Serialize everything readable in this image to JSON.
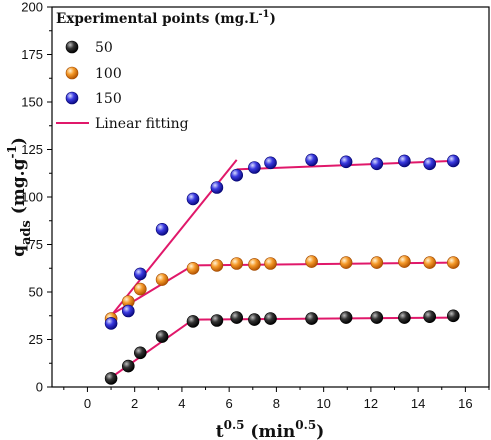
{
  "chart_data": {
    "type": "scatter",
    "xlabel": {
      "base": "t",
      "sup1": "0.5",
      "rest": " (min",
      "sup2": "0.5",
      "close": ")"
    },
    "ylabel": {
      "base": "q",
      "sub": "ads",
      "rest": " (mg.g",
      "sup": "-1",
      "close": ")"
    },
    "xlim": [
      -1.5,
      17
    ],
    "ylim": [
      0,
      200
    ],
    "xticks": [
      "0",
      "2",
      "4",
      "6",
      "8",
      "10",
      "12",
      "14",
      "16"
    ],
    "yticks": [
      "0",
      "25",
      "50",
      "75",
      "100",
      "125",
      "150",
      "175",
      "200"
    ],
    "legend": {
      "title": "Experimental points (mg.L",
      "title_sup": "-1",
      "title_close": ")",
      "placement": "top-left",
      "line_label": "Linear fitting"
    },
    "x": [
      1.0,
      1.73,
      2.24,
      3.16,
      4.47,
      5.48,
      6.32,
      7.07,
      7.75,
      9.49,
      10.95,
      12.25,
      13.42,
      14.49,
      15.49
    ],
    "series": [
      {
        "name": "50",
        "color": "#1a1a1a",
        "values": [
          4.5,
          11,
          18,
          26.5,
          34.5,
          35,
          36.5,
          35.5,
          36,
          36,
          36.5,
          36.5,
          36.5,
          37,
          37.5
        ]
      },
      {
        "name": "100",
        "color": "#f08a1c",
        "values": [
          36,
          45,
          51.5,
          56.5,
          62.5,
          64,
          65,
          64.5,
          65,
          66,
          65.5,
          65.5,
          66,
          65.5,
          65.5
        ]
      },
      {
        "name": "150",
        "color": "#2323d0",
        "values": [
          33.5,
          40,
          59.5,
          83,
          99,
          105,
          111.5,
          115.5,
          118,
          119.5,
          118.5,
          117.5,
          119,
          117.5,
          119
        ]
      }
    ],
    "fit_color": "#e0186a",
    "fit_lines": [
      [
        [
          1.0,
          5
        ],
        [
          4.47,
          35.5
        ],
        [
          15.49,
          36.5
        ]
      ],
      [
        [
          1.0,
          38
        ],
        [
          4.47,
          64
        ],
        [
          15.49,
          65.5
        ]
      ],
      [
        [
          1.0,
          37.5
        ],
        [
          6.32,
          119.5
        ]
      ],
      [
        [
          6.32,
          114.5
        ],
        [
          15.49,
          119
        ]
      ]
    ]
  }
}
